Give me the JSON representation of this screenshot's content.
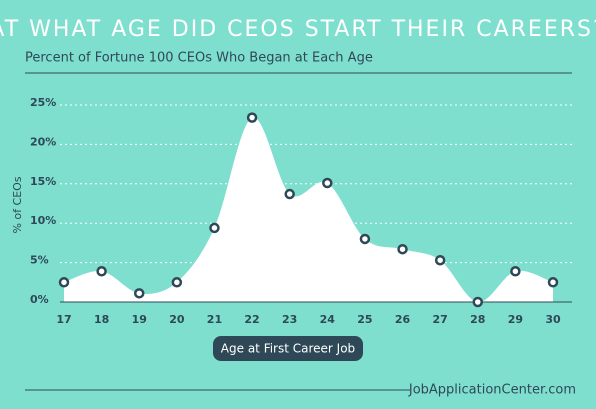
{
  "chart_data": {
    "type": "area",
    "title": "AT WHAT AGE DID CEOS START THEIR CAREERS?",
    "subtitle": "Percent of Fortune 100 CEOs Who Began at Each Age",
    "x_label": "Age at First Career Job",
    "y_label": "% of CEOs",
    "source": "JobApplicationCenter.com",
    "categories": [
      "17",
      "18",
      "19",
      "20",
      "21",
      "22",
      "23",
      "24",
      "25",
      "26",
      "27",
      "28",
      "29",
      "30"
    ],
    "values": [
      2.5,
      3.9,
      1.1,
      2.5,
      9.4,
      23.4,
      13.7,
      15.1,
      8.0,
      6.7,
      5.3,
      0,
      3.9,
      2.5
    ],
    "color": "#ffffff",
    "marker_color": "#2f4858",
    "ylim": [
      0,
      25
    ],
    "yticks": [
      {
        "value": 0,
        "label": "0%"
      },
      {
        "value": 5,
        "label": "5%"
      },
      {
        "value": 10,
        "label": "10%"
      },
      {
        "value": 15,
        "label": "15%"
      },
      {
        "value": 20,
        "label": "20%"
      },
      {
        "value": 25,
        "label": "25%"
      }
    ],
    "grid": true
  }
}
